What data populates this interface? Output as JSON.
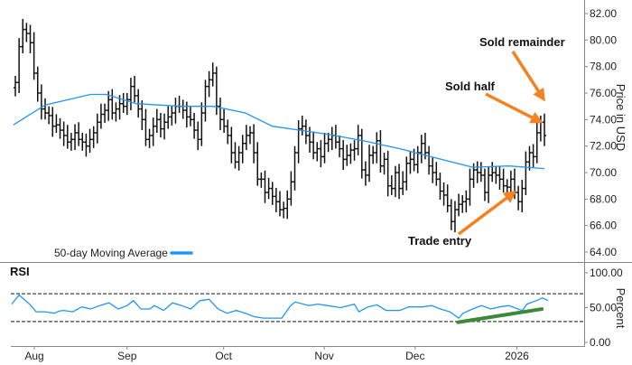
{
  "chart_data": [
    {
      "type": "ohlc",
      "title": "",
      "ylabel": "Price in USD",
      "ylim": [
        64,
        82
      ],
      "xlim": [
        0,
        142
      ],
      "yticks": [
        "82.00",
        "80.00",
        "78.00",
        "76.00",
        "74.00",
        "72.00",
        "70.00",
        "68.00",
        "66.00",
        "64.00"
      ],
      "close": [
        76.8,
        79.5,
        80.8,
        80.5,
        79.8,
        77.5,
        76,
        74.8,
        74.5,
        74.3,
        73.5,
        73.6,
        73.2,
        72.8,
        72.3,
        72.5,
        73,
        72.5,
        72.3,
        72,
        72.5,
        73,
        73.8,
        74.4,
        74.7,
        75.5,
        74.5,
        74.8,
        75.2,
        75,
        75.5,
        76.5,
        75.8,
        74.8,
        74,
        72.5,
        72.8,
        73.5,
        74,
        73.3,
        73.8,
        74.2,
        74.5,
        75,
        75,
        74.7,
        74.2,
        74,
        73.2,
        72.5,
        74.5,
        76.5,
        77,
        77.5,
        75,
        74,
        73.5,
        72.8,
        71.5,
        70.8,
        71.5,
        72.2,
        72.8,
        73,
        71.5,
        69.5,
        69.5,
        68.5,
        68.8,
        68.2,
        67.8,
        67.2,
        67.3,
        68,
        69.3,
        71.5,
        73.3,
        73.5,
        72.8,
        72.3,
        71.5,
        71.8,
        71.2,
        72.2,
        72.5,
        72.8,
        72.3,
        71.8,
        71,
        71.3,
        71.7,
        71.8,
        72.8,
        70.2,
        69.8,
        71.3,
        71.5,
        72.4,
        70.5,
        71,
        69,
        68.8,
        70,
        68.8,
        69.3,
        70.7,
        71,
        70.6,
        71.5,
        72.2,
        71.5,
        70.5,
        70,
        69.5,
        68.6,
        68.3,
        67.5,
        66.3,
        67.2,
        67.6,
        67.8,
        68,
        69.5,
        70.2,
        70,
        69.8,
        68.5,
        69.8,
        70,
        69.8,
        69.5,
        69,
        68.9,
        69.5,
        68.5,
        67.8,
        68.8,
        70.8,
        71.5,
        71.2,
        73,
        73.8,
        72.8
      ],
      "moving_average": {
        "name": "50-day Moving Average",
        "color": "#2196f3",
        "points": [
          [
            -0.5,
            73.6
          ],
          [
            8,
            75.1
          ],
          [
            20.2,
            75.9
          ],
          [
            24.4,
            75.9
          ],
          [
            32.4,
            75.2
          ],
          [
            44.6,
            75
          ],
          [
            53.2,
            75
          ],
          [
            61.7,
            74.5
          ],
          [
            69,
            73.5
          ],
          [
            76.3,
            73.2
          ],
          [
            83.7,
            72.9
          ],
          [
            93.4,
            72.4
          ],
          [
            103.2,
            71.8
          ],
          [
            112.9,
            71.1
          ],
          [
            122.7,
            70.4
          ],
          [
            132.4,
            70.5
          ],
          [
            142,
            70.3
          ]
        ]
      },
      "annotations": [
        {
          "text": "Sold remainder",
          "color": "#f58220"
        },
        {
          "text": "Sold half",
          "color": "#f58220"
        },
        {
          "text": "Trade entry",
          "color": "#f58220"
        }
      ]
    },
    {
      "type": "line",
      "title": "RSI",
      "ylabel": "Percent",
      "ylim": [
        0,
        100
      ],
      "yticks": [
        "100.00",
        "50.00",
        "0.00"
      ],
      "overbought": 70,
      "oversold": 30,
      "color": "#2196f3",
      "points": [
        [
          -1,
          55
        ],
        [
          1,
          68
        ],
        [
          3.8,
          55
        ],
        [
          5.6,
          44
        ],
        [
          8,
          44
        ],
        [
          10.5,
          42
        ],
        [
          11.7,
          45
        ],
        [
          12.9,
          46
        ],
        [
          15.4,
          44
        ],
        [
          17.8,
          51
        ],
        [
          20.2,
          48
        ],
        [
          22.7,
          53
        ],
        [
          25.1,
          57
        ],
        [
          27.6,
          48
        ],
        [
          30,
          53
        ],
        [
          31.7,
          60
        ],
        [
          33.7,
          48
        ],
        [
          36.1,
          48
        ],
        [
          37.3,
          53
        ],
        [
          39.8,
          46
        ],
        [
          42.2,
          57
        ],
        [
          44.6,
          53
        ],
        [
          47.1,
          48
        ],
        [
          49.5,
          60
        ],
        [
          52,
          62
        ],
        [
          54.4,
          48
        ],
        [
          56.8,
          42
        ],
        [
          59.3,
          46
        ],
        [
          61.7,
          42
        ],
        [
          64.1,
          37
        ],
        [
          66.6,
          35
        ],
        [
          69,
          35
        ],
        [
          71.5,
          35
        ],
        [
          73.9,
          53
        ],
        [
          75.1,
          58
        ],
        [
          78.8,
          53
        ],
        [
          81.2,
          55
        ],
        [
          83.7,
          53
        ],
        [
          87.3,
          50
        ],
        [
          91,
          55
        ],
        [
          92.2,
          44
        ],
        [
          94.6,
          51
        ],
        [
          97.1,
          54
        ],
        [
          99.5,
          46
        ],
        [
          103.2,
          46
        ],
        [
          105.6,
          51
        ],
        [
          109.3,
          51
        ],
        [
          111.7,
          53
        ],
        [
          114.1,
          48
        ],
        [
          116.6,
          44
        ],
        [
          119,
          35
        ],
        [
          120.2,
          42
        ],
        [
          122.7,
          48
        ],
        [
          125.1,
          53
        ],
        [
          127.6,
          48
        ],
        [
          130,
          51
        ],
        [
          132.4,
          53
        ],
        [
          134.9,
          48
        ],
        [
          136.1,
          46
        ],
        [
          137.3,
          55
        ],
        [
          139.8,
          60
        ],
        [
          141.5,
          64
        ],
        [
          143,
          60
        ]
      ],
      "trendline": {
        "color": "#3a8a3a",
        "from": [
          118.8,
          29
        ],
        "to": [
          141.3,
          48
        ]
      }
    }
  ],
  "x_axis": {
    "ticks": [
      {
        "label": "Aug",
        "index": 5.1
      },
      {
        "label": "Sep",
        "index": 30
      },
      {
        "label": "Oct",
        "index": 55.9
      },
      {
        "label": "Nov",
        "index": 82.9
      },
      {
        "label": "Dec",
        "index": 107.3
      },
      {
        "label": "2026",
        "index": 134.6
      }
    ]
  }
}
